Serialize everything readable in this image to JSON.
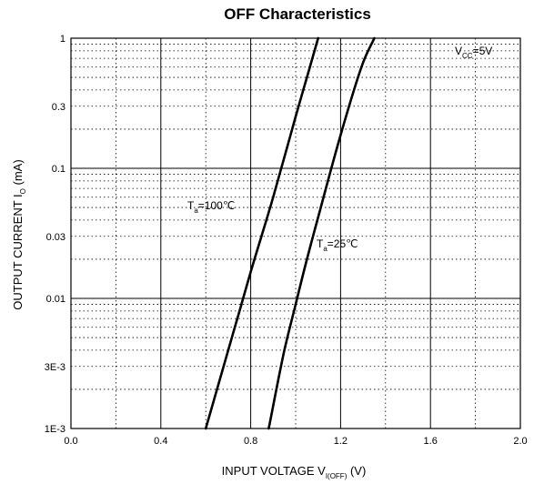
{
  "chart_data": {
    "type": "line",
    "title": "OFF Characteristics",
    "xlabel": {
      "main": "INPUT VOLTAGE",
      "symbol": "V",
      "subscript": "I(OFF)",
      "unit": "(V)"
    },
    "ylabel": {
      "main": "OUTPUT CURRENT",
      "symbol": "I",
      "subscript": "O",
      "unit": "(mA)"
    },
    "xlim": [
      0.0,
      2.0
    ],
    "ylim": [
      0.001,
      1
    ],
    "yscale": "log",
    "x_ticks": [
      "0.0",
      "0.4",
      "0.8",
      "1.2",
      "1.6",
      "2.0"
    ],
    "x_tick_values": [
      0.0,
      0.4,
      0.8,
      1.2,
      1.6,
      2.0
    ],
    "y_ticks": [
      "1E-3",
      "3E-3",
      "0.01",
      "0.03",
      "0.1",
      "0.3",
      "1"
    ],
    "y_tick_values": [
      0.001,
      0.003,
      0.01,
      0.03,
      0.1,
      0.3,
      1
    ],
    "grid": true,
    "annotations": [
      {
        "prefix": "V",
        "sub": "CC",
        "suffix": "=5V"
      }
    ],
    "series": [
      {
        "label": {
          "prefix": "T",
          "sub": "a",
          "suffix": "=100℃"
        },
        "x": [
          0.6,
          0.7,
          0.75,
          0.8,
          0.9,
          1.0,
          1.05,
          1.1
        ],
        "y": [
          0.001,
          0.004,
          0.008,
          0.016,
          0.06,
          0.25,
          0.5,
          1.0
        ]
      },
      {
        "label": {
          "prefix": "T",
          "sub": "a",
          "suffix": "=25℃"
        },
        "x": [
          0.88,
          0.95,
          1.0,
          1.05,
          1.1,
          1.2,
          1.3,
          1.35
        ],
        "y": [
          0.001,
          0.004,
          0.009,
          0.02,
          0.042,
          0.18,
          0.65,
          1.0
        ]
      }
    ]
  }
}
